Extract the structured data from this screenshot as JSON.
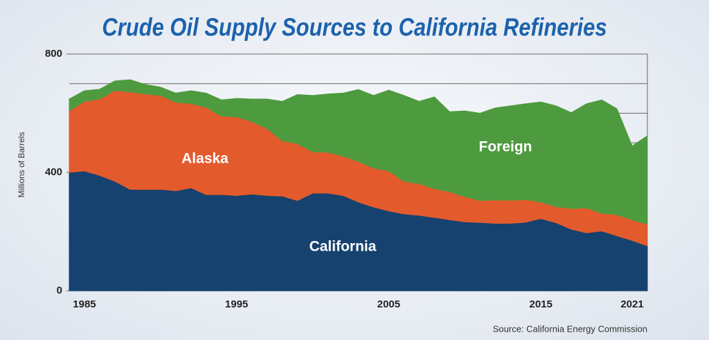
{
  "chart_data": {
    "type": "stacked-area",
    "title": "Crude Oil Supply Sources to California Refineries",
    "y_label": "Millions of Barrels",
    "source": "Source:  California Energy Commission",
    "x": [
      1984,
      1985,
      1986,
      1987,
      1988,
      1989,
      1990,
      1991,
      1992,
      1993,
      1994,
      1995,
      1996,
      1997,
      1998,
      1999,
      2000,
      2001,
      2002,
      2003,
      2004,
      2005,
      2006,
      2007,
      2008,
      2009,
      2010,
      2011,
      2012,
      2013,
      2014,
      2015,
      2016,
      2017,
      2018,
      2019,
      2020,
      2021,
      2022
    ],
    "series": [
      {
        "name": "California",
        "color": "#15426f",
        "values": [
          400,
          405,
          390,
          370,
          343,
          342,
          343,
          338,
          348,
          325,
          325,
          322,
          327,
          322,
          320,
          305,
          330,
          330,
          322,
          300,
          283,
          270,
          260,
          255,
          248,
          240,
          233,
          231,
          228,
          228,
          232,
          244,
          230,
          208,
          196,
          202,
          186,
          170,
          152
        ]
      },
      {
        "name": "Alaska",
        "color": "#e35b2c",
        "values": [
          208,
          235,
          258,
          307,
          329,
          323,
          317,
          299,
          285,
          295,
          265,
          266,
          245,
          226,
          187,
          192,
          140,
          138,
          133,
          137,
          132,
          135,
          110,
          107,
          97,
          95,
          85,
          74,
          79,
          78,
          76,
          56,
          54,
          70,
          84,
          60,
          71,
          70,
          73
        ]
      },
      {
        "name": "Foreign",
        "color": "#4e9a3f",
        "values": [
          40,
          36,
          33,
          32,
          41,
          32,
          28,
          31,
          43,
          48,
          55,
          62,
          76,
          100,
          133,
          166,
          190,
          197,
          213,
          243,
          245,
          273,
          290,
          278,
          310,
          270,
          290,
          295,
          311,
          319,
          324,
          338,
          341,
          324,
          352,
          383,
          358,
          249,
          299
        ]
      }
    ],
    "xlim": [
      1984,
      2022
    ],
    "xticks": [
      1985,
      1995,
      2005,
      2015,
      2021
    ],
    "ylim": [
      0,
      800
    ],
    "yticks": [
      0,
      400,
      800
    ],
    "grid_lines": [
      500,
      600,
      700,
      800
    ]
  }
}
